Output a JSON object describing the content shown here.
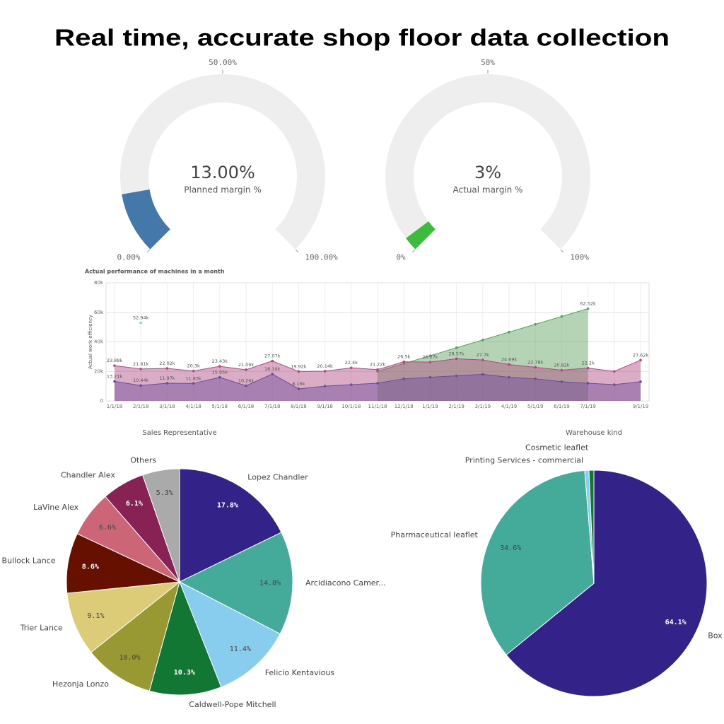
{
  "title": "Real time, accurate shop floor data collection",
  "chart_data": [
    {
      "type": "gauge",
      "title": "Planned margin %",
      "values": [
        13
      ],
      "value_labels": [
        "13.00%"
      ],
      "color": "#4477aa",
      "ylim": [
        0,
        100
      ],
      "yticks": [
        {
          "value": 0,
          "label": "0.00%"
        },
        {
          "value": 50,
          "label": "50.00%"
        },
        {
          "value": 100,
          "label": "100.00%"
        }
      ]
    },
    {
      "type": "gauge",
      "title": "Actual margin %",
      "values": [
        3
      ],
      "value_labels": [
        "3%"
      ],
      "color": "#3dbb3d",
      "ylim": [
        0,
        100
      ],
      "yticks": [
        {
          "value": 0,
          "label": "0%"
        },
        {
          "value": 50,
          "label": "50%"
        },
        {
          "value": 100,
          "label": "100%"
        }
      ]
    },
    {
      "type": "line",
      "title": "Actual performance of machines in a month",
      "ylabel": "Actual work efficiency",
      "categories": [
        "1/1/18",
        "2/1/18",
        "3/1/18",
        "4/1/18",
        "5/1/18",
        "6/1/18",
        "7/1/18",
        "8/1/18",
        "9/1/18",
        "10/1/18",
        "11/1/18",
        "12/1/18",
        "1/1/19",
        "2/1/19",
        "3/1/19",
        "4/1/19",
        "5/1/19",
        "6/1/19",
        "7/1/19",
        null,
        "9/1/19"
      ],
      "ylim": [
        0,
        80000
      ],
      "yticks": [
        0,
        {
          "value": 20000,
          "label": "20k"
        },
        {
          "value": 40000,
          "label": "40k"
        },
        {
          "value": 60000,
          "label": "60k"
        },
        {
          "value": 80000,
          "label": "80k"
        }
      ],
      "grid": true,
      "series": [
        {
          "color": "#5aa05a",
          "values": [
            null,
            null,
            null,
            null,
            null,
            null,
            null,
            null,
            null,
            null,
            20000,
            25300,
            30600,
            36000,
            41300,
            46600,
            51900,
            57200,
            62520,
            null,
            null
          ],
          "value_labels": [
            null,
            null,
            null,
            null,
            null,
            null,
            null,
            null,
            null,
            null,
            null,
            null,
            null,
            null,
            null,
            null,
            null,
            null,
            "62.52k",
            null,
            null
          ]
        },
        {
          "color": "#b0487e",
          "values": [
            23880,
            21610,
            22020,
            20300,
            23430,
            21090,
            27070,
            19920,
            20140,
            22400,
            21220,
            26500,
            26270,
            28570,
            27700,
            24690,
            22780,
            20820,
            22200,
            20000,
            27620
          ],
          "value_labels": [
            "23.88k",
            "21.61k",
            "22.02k",
            "20.3k",
            "23.43k",
            "21.09k",
            "27.07k",
            "19.92k",
            "20.14k",
            "22.4k",
            "21.22k",
            "26.5k",
            "26.27k",
            "28.57k",
            "27.7k",
            "24.69k",
            "22.78k",
            "20.82k",
            "22.2k",
            null,
            "27.62k"
          ]
        },
        {
          "color": "#6a4c9c",
          "values": [
            13210,
            10440,
            11970,
            11830,
            15950,
            10260,
            18190,
            8160,
            10000,
            11000,
            12000,
            15000,
            16000,
            17000,
            18000,
            16000,
            15000,
            13000,
            12000,
            11000,
            13000
          ],
          "value_labels": [
            "13.21k",
            "10.44k",
            "11.97k",
            "11.83k",
            "15.95k",
            "10.26k",
            "18.19k",
            "8.16k",
            null,
            null,
            null,
            null,
            null,
            null,
            null,
            null,
            null,
            null,
            null,
            null,
            null
          ]
        },
        {
          "color": "#88ccee",
          "values": [
            null,
            52940,
            null,
            null,
            null,
            null,
            null,
            null,
            null,
            null,
            null,
            null,
            null,
            null,
            null,
            null,
            null,
            null,
            null,
            null,
            null
          ],
          "value_labels": [
            null,
            "52.94k",
            null,
            null,
            null,
            null,
            null,
            null,
            null,
            null,
            null,
            null,
            null,
            null,
            null,
            null,
            null,
            null,
            null,
            null,
            null
          ]
        }
      ]
    },
    {
      "type": "pie",
      "title": "Sales Representative",
      "categories": [
        "Lopez Chandler",
        "Arcidiacono Camer...",
        "Felicio Kentavious",
        "Caldwell-Pope Mitchell",
        "Hezonja Lonzo",
        "Trier Lance",
        "Bullock Lance",
        "LaVine Alex",
        "Chandler Alex",
        "Others"
      ],
      "values": [
        17.8,
        14.8,
        11.4,
        10.3,
        10.0,
        9.1,
        8.6,
        6.6,
        6.1,
        5.3
      ],
      "value_labels": [
        "17.8%",
        "14.8%",
        "11.4%",
        "10.3%",
        "10.0%",
        "9.1%",
        "8.6%",
        "6.6%",
        "6.1%",
        "5.3%"
      ],
      "colors": [
        "#332288",
        "#44aa99",
        "#88ccee",
        "#117733",
        "#999933",
        "#ddcc77",
        "#661100",
        "#cc6677",
        "#882255",
        "#aaaaaa"
      ]
    },
    {
      "type": "pie",
      "title": "Warehouse kind",
      "categories": [
        "Box",
        "Pharmaceutical leaflet",
        "Printing Services - commercial",
        "Cosmetic leaflet"
      ],
      "values": [
        64.1,
        34.6,
        0.6,
        0.7
      ],
      "value_labels": [
        "64.1%",
        "34.6%",
        null,
        null
      ],
      "colors": [
        "#332288",
        "#44aa99",
        "#88ccee",
        "#117733"
      ]
    }
  ]
}
